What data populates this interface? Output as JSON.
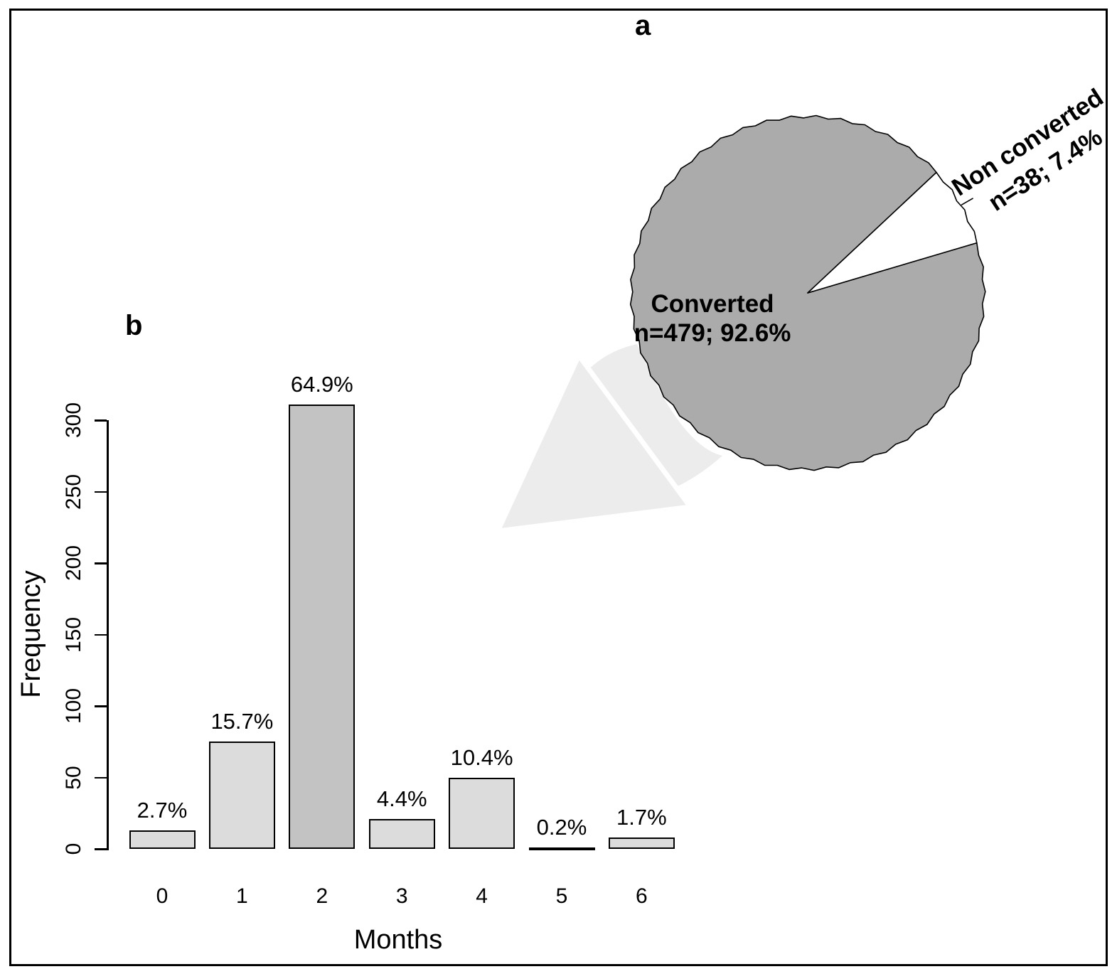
{
  "figure": {
    "panel_a_label": "a",
    "panel_b_label": "b"
  },
  "colors": {
    "pie_gray": "#ababab",
    "pie_white": "#ffffff",
    "bar_light": "#dcdcdc",
    "bar_dark": "#c3c3c3",
    "arrow": "#ececec",
    "outline": "#000000"
  },
  "chart_data": [
    {
      "type": "pie",
      "panel": "a",
      "slices": [
        {
          "label": "Converted",
          "sublabel": "n=479; 92.6%",
          "n": 479,
          "percent": 92.6,
          "color": "#ababab"
        },
        {
          "label": "Non converted",
          "sublabel": "n=38; 7.4%",
          "n": 38,
          "percent": 7.4,
          "color": "#ffffff"
        }
      ],
      "legend_position": "none"
    },
    {
      "type": "bar",
      "panel": "b",
      "categories": [
        "0",
        "1",
        "2",
        "3",
        "4",
        "5",
        "6"
      ],
      "values": [
        13,
        75,
        311,
        21,
        50,
        1,
        8
      ],
      "bar_labels": [
        "2.7%",
        "15.7%",
        "64.9%",
        "4.4%",
        "10.4%",
        "0.2%",
        "1.7%"
      ],
      "xlabel": "Months",
      "ylabel": "Frequency",
      "ylim": [
        0,
        300
      ],
      "yticks": [
        0,
        50,
        100,
        150,
        200,
        250,
        300
      ],
      "bar_colors": [
        "#dcdcdc",
        "#dcdcdc",
        "#c3c3c3",
        "#dcdcdc",
        "#dcdcdc",
        "#dcdcdc",
        "#dcdcdc"
      ],
      "grid": false
    }
  ]
}
